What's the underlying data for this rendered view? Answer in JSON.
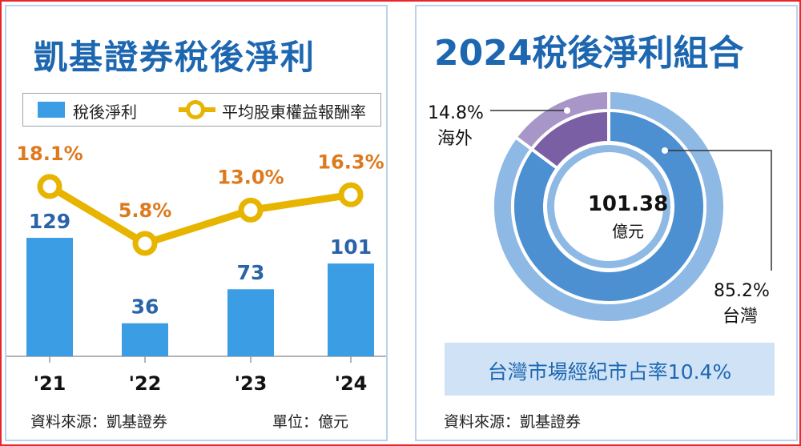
{
  "left": {
    "title": "凱基證券稅後淨利",
    "legend_bar": "稅後淨利",
    "legend_line": "平均股東權益報酬率",
    "source": "資料來源：凱基證券",
    "unit": "單位：億元"
  },
  "right": {
    "title": "2024稅後淨利組合",
    "center_value": "101.38",
    "center_unit": "億元",
    "overseas_pct": "14.8%",
    "overseas_label": "海外",
    "taiwan_pct": "85.2%",
    "taiwan_label": "台灣",
    "banner": "台灣市場經紀市占率10.4%",
    "source": "資料來源：凱基證券"
  },
  "colors": {
    "title": "#1d67b1",
    "bar": "#3b9de3",
    "line": "#e7b400",
    "line_label": "#dd7a1d",
    "taiwan_dark": "#4d90d2",
    "taiwan_light": "#8fb9e5",
    "overseas_dark": "#7b5fa4",
    "overseas_light": "#a996c8",
    "frame": "#e8262b"
  },
  "chart_data": [
    {
      "type": "bar",
      "categories": [
        "'21",
        "'22",
        "'23",
        "'24"
      ],
      "series": [
        {
          "name": "稅後淨利",
          "values": [
            129,
            36,
            73,
            101
          ],
          "labels": [
            "129",
            "36",
            "73",
            "101"
          ]
        },
        {
          "name": "平均股東權益報酬率",
          "type": "line",
          "values": [
            18.1,
            5.8,
            13.0,
            16.3
          ],
          "labels": [
            "18.1%",
            "5.8%",
            "13.0%",
            "16.3%"
          ]
        }
      ],
      "title": "凱基證券稅後淨利",
      "unit": "單位：億元"
    },
    {
      "type": "pie",
      "title": "2024稅後淨利組合",
      "categories": [
        "台灣",
        "海外"
      ],
      "values": [
        85.2,
        14.8
      ],
      "labels": [
        "85.2%",
        "14.8%"
      ],
      "total": "101.38",
      "total_unit": "億元"
    }
  ]
}
